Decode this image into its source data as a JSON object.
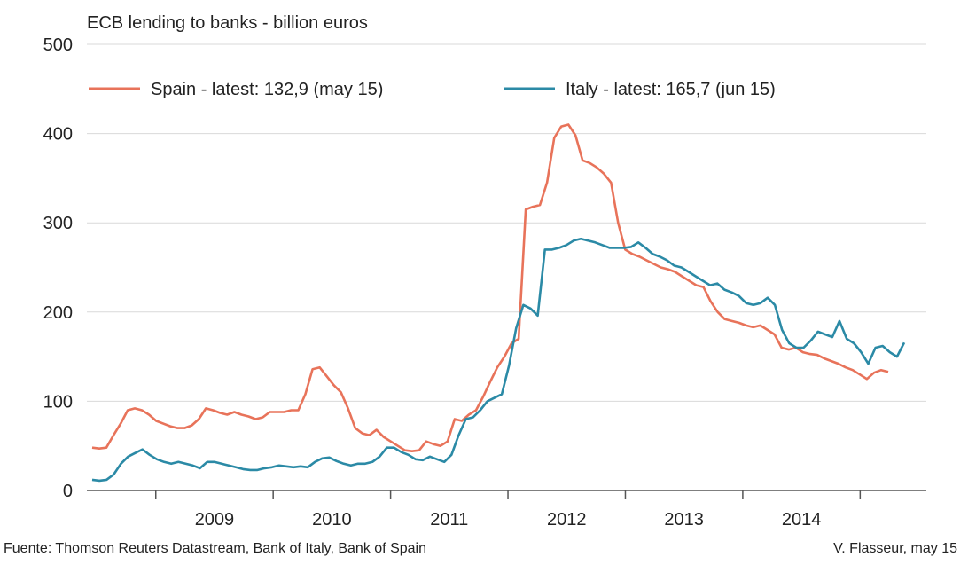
{
  "chart_data": {
    "type": "line",
    "title": "ECB lending to banks - billion euros",
    "xlabel": "",
    "ylabel": "",
    "ylim": [
      0,
      500
    ],
    "y_ticks": [
      0,
      100,
      200,
      300,
      400,
      500
    ],
    "x_tick_labels": [
      "2009",
      "2010",
      "2011",
      "2012",
      "2013",
      "2014"
    ],
    "grid": true,
    "legend_position": "top",
    "x_start": "2008-06",
    "series": [
      {
        "name": "Spain - latest: 132,9 (may 15)",
        "color": "#e8735a",
        "values": [
          48,
          47,
          48,
          62,
          75,
          90,
          92,
          90,
          85,
          78,
          75,
          72,
          70,
          70,
          73,
          80,
          92,
          90,
          87,
          85,
          88,
          85,
          83,
          80,
          82,
          88,
          88,
          88,
          90,
          90,
          108,
          136,
          138,
          128,
          118,
          110,
          92,
          70,
          64,
          62,
          68,
          60,
          55,
          50,
          45,
          44,
          45,
          55,
          52,
          50,
          55,
          80,
          78,
          85,
          90,
          105,
          122,
          138,
          150,
          165,
          170,
          315,
          318,
          320,
          345,
          395,
          408,
          410,
          398,
          370,
          367,
          362,
          355,
          345,
          300,
          270,
          265,
          262,
          258,
          254,
          250,
          248,
          245,
          240,
          235,
          230,
          228,
          212,
          200,
          192,
          190,
          188,
          185,
          183,
          185,
          180,
          175,
          160,
          158,
          160,
          155,
          153,
          152,
          148,
          145,
          142,
          138,
          135,
          130,
          125,
          132,
          135,
          132.9
        ],
        "labels": []
      },
      {
        "name": "Italy - latest: 165,7 (jun 15)",
        "color": "#2b8aa6",
        "values": [
          12,
          11,
          12,
          18,
          30,
          38,
          42,
          46,
          40,
          35,
          32,
          30,
          32,
          30,
          28,
          25,
          32,
          32,
          30,
          28,
          26,
          24,
          23,
          23,
          25,
          26,
          28,
          27,
          26,
          27,
          26,
          32,
          36,
          37,
          33,
          30,
          28,
          30,
          30,
          32,
          38,
          48,
          48,
          43,
          40,
          35,
          34,
          38,
          35,
          32,
          40,
          62,
          80,
          82,
          90,
          100,
          104,
          108,
          140,
          182,
          208,
          204,
          196,
          270,
          270,
          272,
          275,
          280,
          282,
          280,
          278,
          275,
          272,
          272,
          272,
          273,
          278,
          272,
          265,
          262,
          258,
          252,
          250,
          245,
          240,
          235,
          230,
          232,
          225,
          222,
          218,
          210,
          208,
          210,
          216,
          208,
          180,
          165,
          160,
          160,
          168,
          178,
          175,
          172,
          190,
          170,
          165,
          155,
          142,
          160,
          162,
          155,
          150,
          165.7
        ],
        "labels": []
      }
    ]
  },
  "footer": {
    "source": "Fuente: Thomson Reuters Datastream, Bank of Italy, Bank of Spain",
    "credit": "V. Flasseur, may 15"
  }
}
